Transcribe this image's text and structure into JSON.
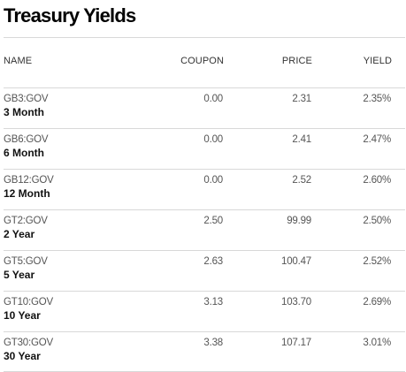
{
  "page": {
    "title": "Treasury Yields"
  },
  "table": {
    "headers": {
      "name": "NAME",
      "coupon": "COUPON",
      "price": "PRICE",
      "yield": "YIELD"
    },
    "rows": [
      {
        "ticker": "GB3:GOV",
        "tenor": "3 Month",
        "coupon": "0.00",
        "price": "2.31",
        "yield": "2.35%"
      },
      {
        "ticker": "GB6:GOV",
        "tenor": "6 Month",
        "coupon": "0.00",
        "price": "2.41",
        "yield": "2.47%"
      },
      {
        "ticker": "GB12:GOV",
        "tenor": "12 Month",
        "coupon": "0.00",
        "price": "2.52",
        "yield": "2.60%"
      },
      {
        "ticker": "GT2:GOV",
        "tenor": "2 Year",
        "coupon": "2.50",
        "price": "99.99",
        "yield": "2.50%"
      },
      {
        "ticker": "GT5:GOV",
        "tenor": "5 Year",
        "coupon": "2.63",
        "price": "100.47",
        "yield": "2.52%"
      },
      {
        "ticker": "GT10:GOV",
        "tenor": "10 Year",
        "coupon": "3.13",
        "price": "103.70",
        "yield": "2.69%"
      },
      {
        "ticker": "GT30:GOV",
        "tenor": "30 Year",
        "coupon": "3.38",
        "price": "107.17",
        "yield": "3.01%"
      }
    ]
  }
}
